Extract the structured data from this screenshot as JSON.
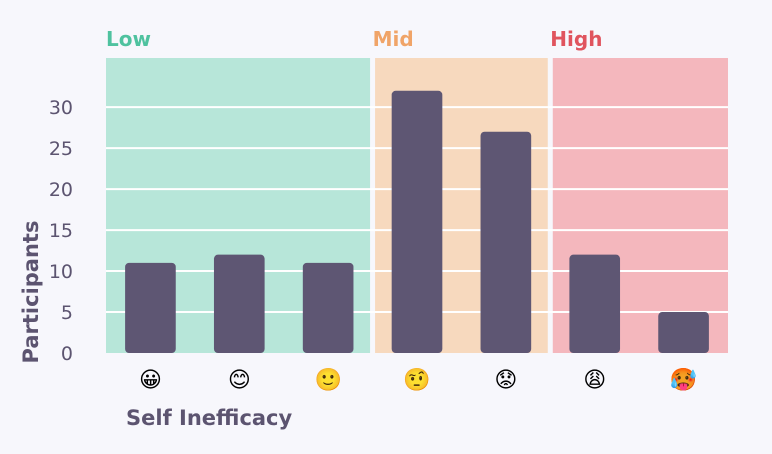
{
  "chart_data": {
    "type": "bar",
    "categories": [
      "😀",
      "😊",
      "🙂",
      "🤨",
      "😟",
      "😩",
      "🥵"
    ],
    "values": [
      11,
      12,
      11,
      32,
      27,
      12,
      5
    ],
    "xlabel": "Self Inefficacy",
    "ylabel": "Participants",
    "ylim": [
      0,
      36
    ],
    "yticks": [
      0,
      5,
      10,
      15,
      20,
      25,
      30
    ],
    "grid": true,
    "bands": [
      {
        "label": "Low",
        "from": 0,
        "to": 2,
        "color": "#b7e6d9",
        "label_color": "#4fc29f"
      },
      {
        "label": "Mid",
        "from": 3,
        "to": 4,
        "color": "#f7d9be",
        "label_color": "#f0a468"
      },
      {
        "label": "High",
        "from": 5,
        "to": 6,
        "color": "#f4b7bd",
        "label_color": "#e0545e"
      }
    ],
    "bar_color": "#5e5673"
  }
}
